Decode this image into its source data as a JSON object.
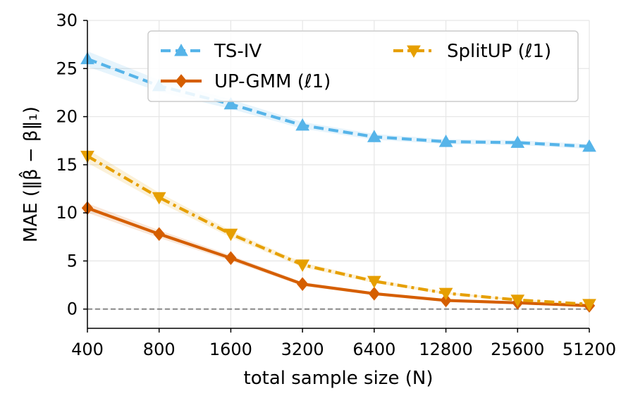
{
  "chart_data": {
    "type": "line",
    "title": "",
    "xlabel": "total sample size (N)",
    "ylabel": "MAE (‖β̂ − β‖₁)",
    "x_scale": "log2",
    "categories": [
      "400",
      "800",
      "1600",
      "3200",
      "6400",
      "12800",
      "25600",
      "51200"
    ],
    "x": [
      400,
      800,
      1600,
      3200,
      6400,
      12800,
      25600,
      51200
    ],
    "ylim": [
      -2,
      30
    ],
    "yticks": [
      "0",
      "5",
      "10",
      "15",
      "20",
      "25",
      "30"
    ],
    "ytick_values": [
      0,
      5,
      10,
      15,
      20,
      25,
      30
    ],
    "grid": true,
    "reference_line": {
      "y": 0,
      "style": "dashed",
      "color": "#808080"
    },
    "legend_position": "top-right",
    "series": [
      {
        "name": "TS-IV",
        "color": "#56b4e9",
        "line_style": "dashed",
        "marker": "triangle-up",
        "values": [
          26.0,
          23.2,
          21.3,
          19.1,
          17.9,
          17.4,
          17.3,
          16.9
        ],
        "band": [
          0.8,
          0.6,
          0.5,
          0.35,
          0.3,
          0.25,
          0.25,
          0.25
        ]
      },
      {
        "name": "UP-GMM (ℓ1)",
        "color": "#d55e00",
        "line_style": "solid",
        "marker": "diamond",
        "values": [
          10.5,
          7.8,
          5.3,
          2.6,
          1.6,
          0.9,
          0.65,
          0.35
        ],
        "band": [
          0.5,
          0.4,
          0.3,
          0.2,
          0.15,
          0.1,
          0.08,
          0.05
        ]
      },
      {
        "name": "SplitUP (ℓ1)",
        "color": "#e69f00",
        "line_style": "dashdot",
        "marker": "triangle-down",
        "values": [
          15.9,
          11.6,
          7.8,
          4.6,
          2.9,
          1.65,
          0.95,
          0.5
        ],
        "band": [
          0.7,
          0.5,
          0.35,
          0.25,
          0.2,
          0.12,
          0.1,
          0.06
        ]
      }
    ]
  }
}
